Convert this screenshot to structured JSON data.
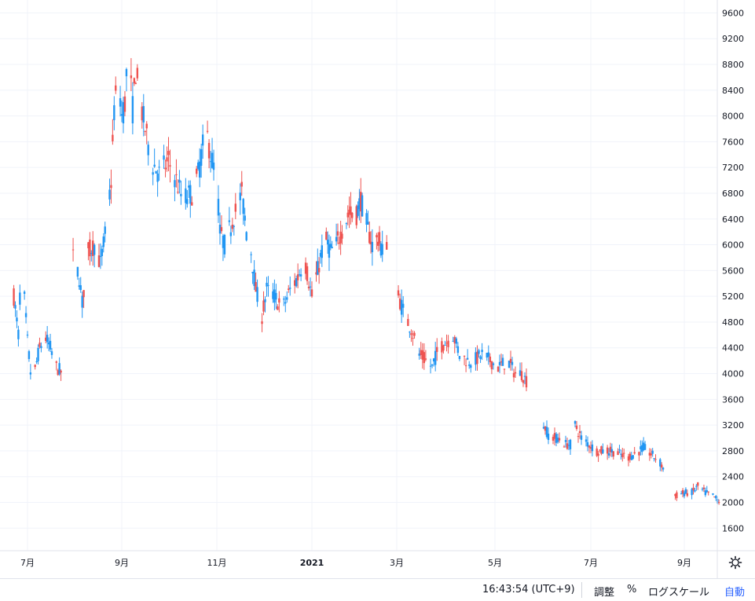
{
  "chart_data": {
    "type": "candlestick",
    "y_axis": {
      "ticks": [
        1600,
        2000,
        2400,
        2800,
        3200,
        3600,
        4000,
        4400,
        4800,
        5200,
        5600,
        6000,
        6400,
        6800,
        7200,
        7600,
        8000,
        8400,
        8800,
        9200,
        9600
      ],
      "range": [
        1250,
        9800
      ]
    },
    "x_axis": {
      "labels": [
        "7月",
        "9月",
        "11月",
        "2021",
        "3月",
        "5月",
        "7月",
        "9月"
      ]
    },
    "colors": {
      "up": "#ef5350",
      "down": "#2196f3",
      "grid": "#f0f3fa"
    },
    "price_path": [
      [
        "2020-06-22",
        5200
      ],
      [
        "2020-06-25",
        4600
      ],
      [
        "2020-06-27",
        5800
      ],
      [
        "2020-07-01",
        4500
      ],
      [
        "2020-07-04",
        3800
      ],
      [
        "2020-07-08",
        4300
      ],
      [
        "2020-07-12",
        4600
      ],
      [
        "2020-07-16",
        4400
      ],
      [
        "2020-07-20",
        4100
      ],
      [
        "2020-07-24",
        4000
      ],
      [
        "2020-07-31",
        5800
      ],
      [
        "2020-08-04",
        5500
      ],
      [
        "2020-08-06",
        5100
      ],
      [
        "2020-08-10",
        5900
      ],
      [
        "2020-08-14",
        6000
      ],
      [
        "2020-08-18",
        5700
      ],
      [
        "2020-08-22",
        6300
      ],
      [
        "2020-08-25",
        7000
      ],
      [
        "2020-08-27",
        8100
      ],
      [
        "2020-08-30",
        8600
      ],
      [
        "2020-09-01",
        8000
      ],
      [
        "2020-09-03",
        8200
      ],
      [
        "2020-09-05",
        9100
      ],
      [
        "2020-09-08",
        8100
      ],
      [
        "2020-09-10",
        8700
      ],
      [
        "2020-09-13",
        8200
      ],
      [
        "2020-09-16",
        7800
      ],
      [
        "2020-09-20",
        7300
      ],
      [
        "2020-09-25",
        7100
      ],
      [
        "2020-10-01",
        7300
      ],
      [
        "2020-10-06",
        7000
      ],
      [
        "2020-10-10",
        6700
      ],
      [
        "2020-10-16",
        6800
      ],
      [
        "2020-10-20",
        7100
      ],
      [
        "2020-10-25",
        7800
      ],
      [
        "2020-10-28",
        7400
      ],
      [
        "2020-11-01",
        7000
      ],
      [
        "2020-11-03",
        6200
      ],
      [
        "2020-11-06",
        6000
      ],
      [
        "2020-11-10",
        6300
      ],
      [
        "2020-11-14",
        6600
      ],
      [
        "2020-11-17",
        6800
      ],
      [
        "2020-11-20",
        6200
      ],
      [
        "2020-11-23",
        5900
      ],
      [
        "2020-11-26",
        5300
      ],
      [
        "2020-11-30",
        4900
      ],
      [
        "2020-12-03",
        5300
      ],
      [
        "2020-12-08",
        5200
      ],
      [
        "2020-12-13",
        5000
      ],
      [
        "2020-12-18",
        5300
      ],
      [
        "2020-12-23",
        5500
      ],
      [
        "2020-12-27",
        5800
      ],
      [
        "2021-01-01",
        5200
      ],
      [
        "2021-01-05",
        5600
      ],
      [
        "2021-01-10",
        6100
      ],
      [
        "2021-01-14",
        5900
      ],
      [
        "2021-01-18",
        6000
      ],
      [
        "2021-01-23",
        6300
      ],
      [
        "2021-01-27",
        6500
      ],
      [
        "2021-01-31",
        6400
      ],
      [
        "2021-02-04",
        6700
      ],
      [
        "2021-02-07",
        6400
      ],
      [
        "2021-02-12",
        6000
      ],
      [
        "2021-02-16",
        6100
      ],
      [
        "2021-02-19",
        5900
      ],
      [
        "2021-02-23",
        6100
      ],
      [
        "2021-03-02",
        5200
      ],
      [
        "2021-03-06",
        4900
      ],
      [
        "2021-03-10",
        4700
      ],
      [
        "2021-03-15",
        4300
      ],
      [
        "2021-03-19",
        4200
      ],
      [
        "2021-03-23",
        4100
      ],
      [
        "2021-03-27",
        4400
      ],
      [
        "2021-04-01",
        4500
      ],
      [
        "2021-04-05",
        4600
      ],
      [
        "2021-04-09",
        4300
      ],
      [
        "2021-04-14",
        4200
      ],
      [
        "2021-04-18",
        4200
      ],
      [
        "2021-04-23",
        4300
      ],
      [
        "2021-04-28",
        4200
      ],
      [
        "2021-05-03",
        4100
      ],
      [
        "2021-05-09",
        4200
      ],
      [
        "2021-05-14",
        4000
      ],
      [
        "2021-05-18",
        4000
      ],
      [
        "2021-05-22",
        3850
      ],
      [
        "2021-06-01",
        3200
      ],
      [
        "2021-06-05",
        3000
      ],
      [
        "2021-06-10",
        3000
      ],
      [
        "2021-06-15",
        2900
      ],
      [
        "2021-06-18",
        2900
      ],
      [
        "2021-06-21",
        3200
      ],
      [
        "2021-06-25",
        3000
      ],
      [
        "2021-06-30",
        2900
      ],
      [
        "2021-07-05",
        2800
      ],
      [
        "2021-07-10",
        2800
      ],
      [
        "2021-07-15",
        2800
      ],
      [
        "2021-07-20",
        2750
      ],
      [
        "2021-07-25",
        2700
      ],
      [
        "2021-07-30",
        2750
      ],
      [
        "2021-08-05",
        2850
      ],
      [
        "2021-08-10",
        2750
      ],
      [
        "2021-08-15",
        2650
      ],
      [
        "2021-08-19",
        2500
      ],
      [
        "2021-08-26",
        2100
      ],
      [
        "2021-09-01",
        2150
      ],
      [
        "2021-09-06",
        2150
      ],
      [
        "2021-09-10",
        2250
      ],
      [
        "2021-09-15",
        2150
      ],
      [
        "2021-09-20",
        2100
      ],
      [
        "2021-09-25",
        2000
      ]
    ]
  },
  "bottom_bar": {
    "time": "16:43:54 (UTC+9)",
    "adjust_label": "調整",
    "percent_label": "%",
    "log_scale_label": "ログスケール",
    "auto_label": "自動"
  },
  "icons": {
    "settings": "gear-icon"
  }
}
